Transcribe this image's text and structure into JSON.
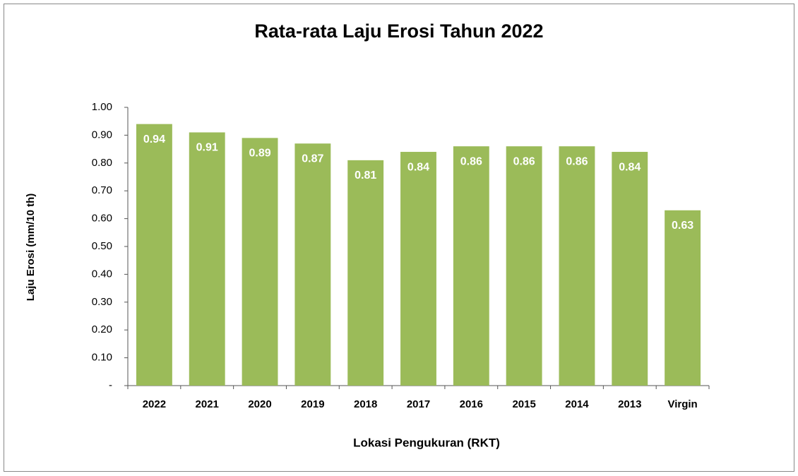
{
  "chart_data": {
    "type": "bar",
    "title": "Rata-rata Laju Erosi Tahun 2022",
    "x_label": "Lokasi Pengukuran (RKT)",
    "y_label": "Laju Erosi (mm/10 th)",
    "categories": [
      "2022",
      "2021",
      "2020",
      "2019",
      "2018",
      "2017",
      "2016",
      "2015",
      "2014",
      "2013",
      "Virgin"
    ],
    "values": [
      0.94,
      0.91,
      0.89,
      0.87,
      0.81,
      0.84,
      0.86,
      0.86,
      0.86,
      0.84,
      0.63
    ],
    "color": "#9bbb59",
    "ylim": [
      0,
      1.0
    ],
    "yticks": [
      {
        "value": 0,
        "label": "-"
      },
      {
        "value": 0.1,
        "label": "0.10"
      },
      {
        "value": 0.2,
        "label": "0.20"
      },
      {
        "value": 0.3,
        "label": "0.30"
      },
      {
        "value": 0.4,
        "label": "0.40"
      },
      {
        "value": 0.5,
        "label": "0.50"
      },
      {
        "value": 0.6,
        "label": "0.60"
      },
      {
        "value": 0.7,
        "label": "0.70"
      },
      {
        "value": 0.8,
        "label": "0.80"
      },
      {
        "value": 0.9,
        "label": "0.90"
      },
      {
        "value": 1.0,
        "label": "1.00"
      }
    ],
    "grid": false
  }
}
